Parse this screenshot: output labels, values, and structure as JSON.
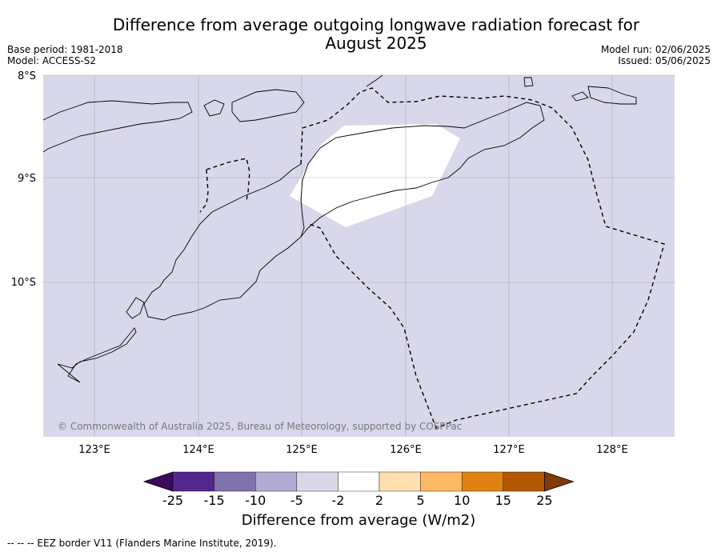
{
  "title_line1": "Difference from average outgoing longwave radiation forecast for",
  "title_line2": "August 2025",
  "base_period": "Base period: 1981-2018",
  "model": "Model: ACCESS-S2",
  "model_run": "Model run: 02/06/2025",
  "issued": "Issued: 05/06/2025",
  "lat_labels": [
    "8°S",
    "9°S",
    "10°S"
  ],
  "lon_labels": [
    "123°E",
    "124°E",
    "125°E",
    "126°E",
    "127°E",
    "128°E"
  ],
  "copyright": "© Commonwealth of Australia 2025, Bureau of Meteorology, supported by COSPPac",
  "colorbar": {
    "title": "Difference from average (W/m2)",
    "tick_labels": [
      "-25",
      "-15",
      "-10",
      "-5",
      "-2",
      "2",
      "5",
      "10",
      "15",
      "25"
    ],
    "colors": [
      "#3d0a5c",
      "#54278f",
      "#7f72ac",
      "#b1aad2",
      "#d8d8ea",
      "#ffffff",
      "#fedfb0",
      "#fdb863",
      "#e08213",
      "#b35806",
      "#7f3b08"
    ]
  },
  "legend_note": "-- -- -- EEZ border V11 (Flanders Marine Institute, 2019).",
  "map_colors": {
    "background_field": "#d8d8ea",
    "neutral_region": "#ffffff"
  }
}
